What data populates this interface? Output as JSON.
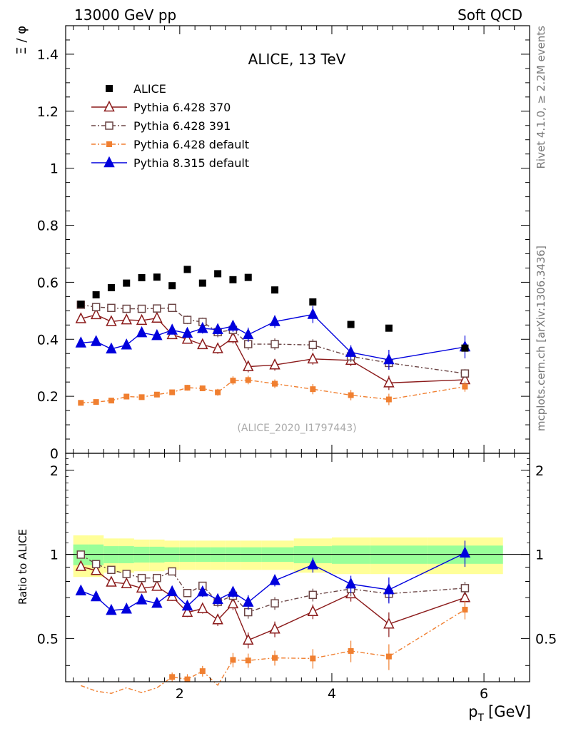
{
  "header": {
    "left": "13000 GeV pp",
    "right": "Soft QCD"
  },
  "side": {
    "rivet": "Rivet 4.1.0, ≥ 2.2M events",
    "mcplots": "mcplots.cern.ch [arXiv:1306.3436]"
  },
  "chart_data": {
    "type": "scatter",
    "title": "ALICE, 13 TeV",
    "analysis": "(ALICE_2020_I1797443)",
    "ylabel": "Ξ / φ",
    "ratio_ylabel": "Ratio to ALICE",
    "xlabel_main": "p",
    "xlabel_sub": "T",
    "xlabel_unit": "[GeV]",
    "xlim": [
      0.5,
      6.6
    ],
    "ylim": [
      0,
      1.5
    ],
    "ratio_ylim": [
      0.35,
      2.3
    ],
    "x_ticks": [
      "2",
      "4",
      "6"
    ],
    "y_ticks": [
      "0",
      "0.2",
      "0.4",
      "0.6",
      "0.8",
      "1",
      "1.2",
      "1.4"
    ],
    "ratio_y_ticks": [
      "0.5",
      "1",
      "2"
    ],
    "data_reference": {
      "name": "ALICE",
      "color": "#000000",
      "x": [
        0.7,
        0.9,
        1.1,
        1.3,
        1.5,
        1.7,
        1.9,
        2.1,
        2.3,
        2.5,
        2.7,
        2.9,
        3.25,
        3.75,
        4.25,
        4.75,
        5.75
      ],
      "y": [
        0.523,
        0.556,
        0.581,
        0.597,
        0.616,
        0.618,
        0.588,
        0.645,
        0.597,
        0.63,
        0.609,
        0.617,
        0.573,
        0.531,
        0.452,
        0.439,
        0.369
      ],
      "ratio_band_inner": [
        0.085,
        0.085,
        0.07,
        0.07,
        0.065,
        0.065,
        0.06,
        0.06,
        0.06,
        0.06,
        0.06,
        0.06,
        0.06,
        0.07,
        0.075,
        0.075,
        0.075
      ],
      "ratio_band_outer": [
        0.17,
        0.17,
        0.14,
        0.14,
        0.13,
        0.13,
        0.12,
        0.12,
        0.12,
        0.12,
        0.12,
        0.12,
        0.12,
        0.14,
        0.15,
        0.15,
        0.15
      ]
    },
    "series": [
      {
        "name": "Pythia 6.428 370",
        "color": "#8b1a1a",
        "marker": "triangle-open",
        "dash": "",
        "values": [
          0.472,
          0.486,
          0.462,
          0.468,
          0.466,
          0.474,
          0.416,
          0.4,
          0.381,
          0.367,
          0.405,
          0.304,
          0.31,
          0.331,
          0.326,
          0.247,
          0.258
        ],
        "errors": [
          0.01,
          0.01,
          0.01,
          0.01,
          0.01,
          0.015,
          0.015,
          0.015,
          0.015,
          0.018,
          0.02,
          0.02,
          0.02,
          0.02,
          0.02,
          0.025,
          0.02
        ],
        "ratio": [
          0.905,
          0.875,
          0.795,
          0.785,
          0.757,
          0.768,
          0.707,
          0.62,
          0.639,
          0.583,
          0.665,
          0.493,
          0.54,
          0.624,
          0.722,
          0.563,
          0.7
        ]
      },
      {
        "name": "Pythia 6.428 391",
        "color": "#6b4545",
        "marker": "square-open",
        "dash": "6,3,2,3",
        "values": [
          0.521,
          0.513,
          0.51,
          0.507,
          0.507,
          0.508,
          0.51,
          0.468,
          0.461,
          0.425,
          0.433,
          0.383,
          0.383,
          0.38,
          0.34,
          0.317,
          0.28
        ],
        "errors": [
          0.01,
          0.01,
          0.01,
          0.01,
          0.01,
          0.01,
          0.012,
          0.015,
          0.015,
          0.018,
          0.02,
          0.02,
          0.02,
          0.02,
          0.02,
          0.02,
          0.015
        ],
        "ratio": [
          0.998,
          0.923,
          0.88,
          0.851,
          0.823,
          0.823,
          0.869,
          0.727,
          0.772,
          0.676,
          0.711,
          0.621,
          0.668,
          0.716,
          0.752,
          0.723,
          0.757
        ]
      },
      {
        "name": "Pythia 6.428 default",
        "color": "#f07f30",
        "marker": "square-filled",
        "dash": "6,3,2,3",
        "values": [
          0.177,
          0.18,
          0.185,
          0.199,
          0.197,
          0.206,
          0.214,
          0.23,
          0.228,
          0.214,
          0.255,
          0.257,
          0.244,
          0.225,
          0.204,
          0.189,
          0.234
        ],
        "errors": [
          0.006,
          0.006,
          0.006,
          0.006,
          0.006,
          0.008,
          0.008,
          0.01,
          0.01,
          0.012,
          0.015,
          0.015,
          0.015,
          0.018,
          0.018,
          0.02,
          0.018
        ],
        "ratio": [
          0.339,
          0.324,
          0.318,
          0.333,
          0.32,
          0.333,
          0.364,
          0.357,
          0.382,
          0.34,
          0.419,
          0.417,
          0.426,
          0.424,
          0.451,
          0.431,
          0.634
        ]
      },
      {
        "name": "Pythia 8.315 default",
        "color": "#0000dd",
        "marker": "triangle-filled",
        "dash": "",
        "values": [
          0.387,
          0.392,
          0.366,
          0.38,
          0.423,
          0.413,
          0.432,
          0.421,
          0.438,
          0.434,
          0.446,
          0.416,
          0.462,
          0.487,
          0.354,
          0.328,
          0.373
        ],
        "errors": [
          0.008,
          0.008,
          0.01,
          0.01,
          0.012,
          0.012,
          0.015,
          0.015,
          0.018,
          0.02,
          0.02,
          0.025,
          0.022,
          0.03,
          0.025,
          0.035,
          0.04
        ],
        "ratio": [
          0.74,
          0.705,
          0.63,
          0.637,
          0.687,
          0.668,
          0.735,
          0.653,
          0.734,
          0.689,
          0.732,
          0.674,
          0.806,
          0.917,
          0.783,
          0.747,
          1.011
        ]
      }
    ]
  }
}
